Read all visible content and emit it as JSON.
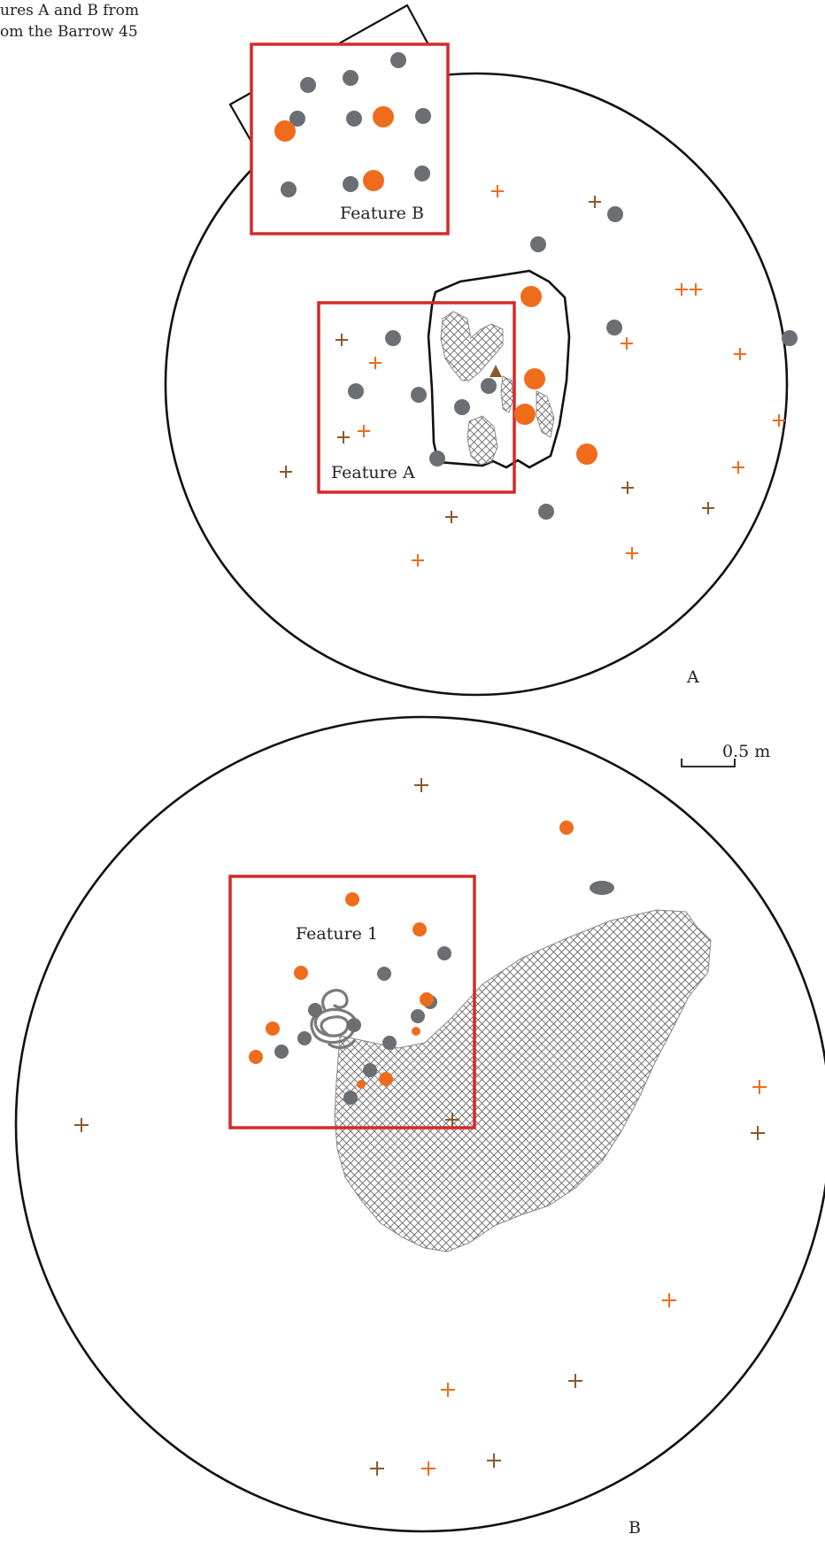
{
  "caption": {
    "line1": "ures A and B from",
    "line2": "om the Barrow 45"
  },
  "panel_a": {
    "letter": "A",
    "feature_labels": {
      "feature_b": "Feature B",
      "feature_a": "Feature A"
    }
  },
  "panel_b": {
    "letter": "B",
    "feature_labels": {
      "feature_1": "Feature 1"
    }
  },
  "scale_bar": {
    "label": "0.5 m"
  },
  "colors": {
    "outline": "#111111",
    "feature_box": "#d42a2a",
    "stone_gray": "#6b6e73",
    "find_orange": "#ef6c1d",
    "cross_brown": "#8a5a2c",
    "hatch": "#666666"
  },
  "symbols": {
    "gray_dot": "stone",
    "orange_dot": "orange-find",
    "cross": "find-cross",
    "hatched_area": "hatched-deposit",
    "triangle": "triangle-marker",
    "coil": "coil-object"
  }
}
